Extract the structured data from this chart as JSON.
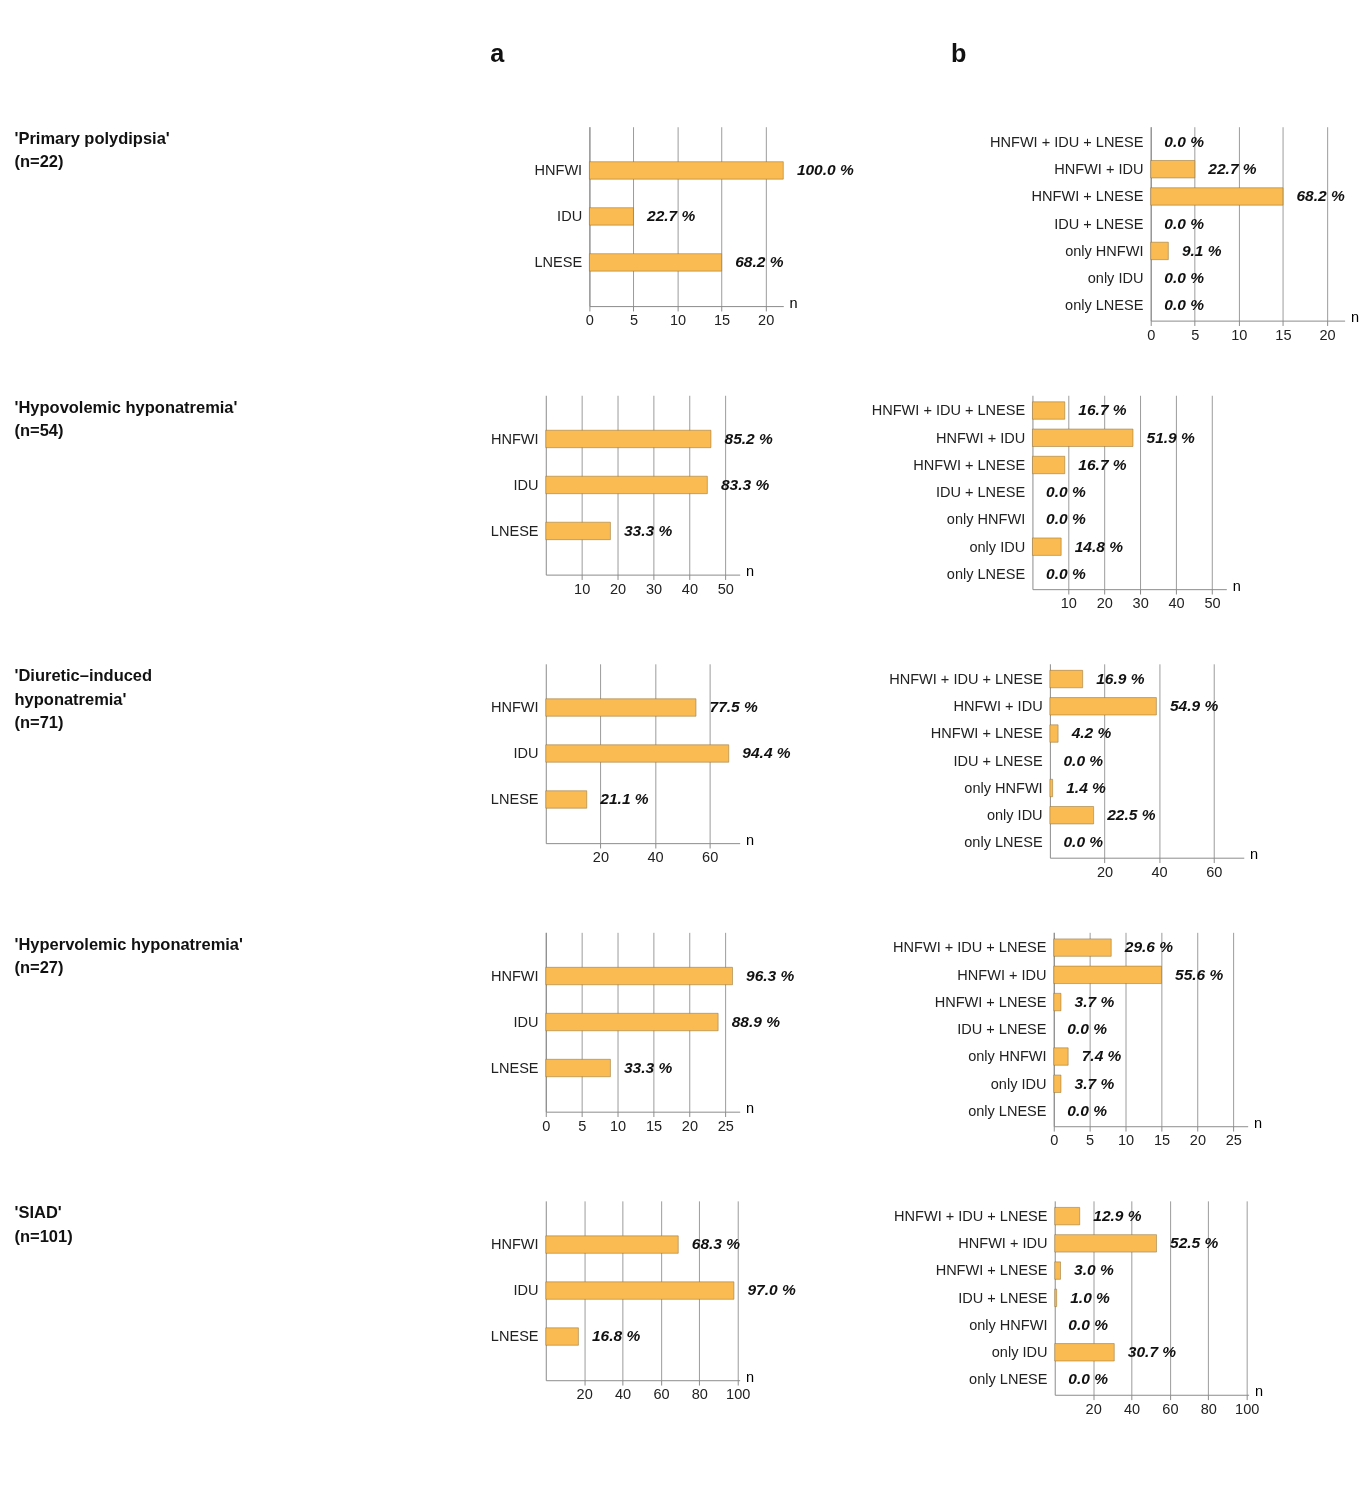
{
  "chart_data": [
    {
      "type": "other",
      "title": "'Primary polydipsia'\n(n=22)"
    },
    {
      "type": "bar",
      "orientation": "horizontal",
      "categories": [
        "HNFWI",
        "IDU",
        "LNESE"
      ],
      "values": [
        22,
        5,
        15
      ],
      "color": "#f9bb52",
      "xlim": [
        0,
        22
      ],
      "xticks": [
        0,
        5,
        10,
        15,
        20
      ],
      "xlabel": "n",
      "grid": "x",
      "annotations": [
        "a",
        {
          "text": "100.0 %",
          "x": 22,
          "y": "HNFWI"
        },
        {
          "text": "22.7 %",
          "x": 5,
          "y": "IDU"
        },
        {
          "text": "68.2 %",
          "x": 15,
          "y": "LNESE"
        }
      ]
    },
    {
      "type": "bar",
      "orientation": "horizontal",
      "categories": [
        "HNFWI + IDU + LNESE",
        "HNFWI + IDU",
        "HNFWI + LNESE",
        "IDU + LNESE",
        "only HNFWI",
        "only IDU",
        "only LNESE"
      ],
      "values": [
        0,
        5,
        15,
        0,
        2,
        0,
        0
      ],
      "color": "#f9bb52",
      "xlim": [
        0,
        22
      ],
      "xticks": [
        0,
        5,
        10,
        15,
        20
      ],
      "xlabel": "n",
      "grid": "x",
      "annotations": [
        "b",
        {
          "text": "0.0 %",
          "x": 0,
          "y": "HNFWI + IDU + LNESE"
        },
        {
          "text": "22.7 %",
          "x": 5,
          "y": "HNFWI + IDU"
        },
        {
          "text": "68.2 %",
          "x": 15,
          "y": "HNFWI + LNESE"
        },
        {
          "text": "0.0 %",
          "x": 0,
          "y": "IDU + LNESE"
        },
        {
          "text": "9.1 %",
          "x": 2,
          "y": "only HNFWI"
        },
        {
          "text": "0.0 %",
          "x": 0,
          "y": "only IDU"
        },
        {
          "text": "0.0 %",
          "x": 0,
          "y": "only LNESE"
        }
      ]
    },
    {
      "type": "other",
      "title": "'Hypovolemic hyponatremia'\n(n=54)"
    },
    {
      "type": "bar",
      "orientation": "horizontal",
      "categories": [
        "HNFWI",
        "IDU",
        "LNESE"
      ],
      "values": [
        46,
        45,
        18
      ],
      "color": "#f9bb52",
      "xlim": [
        0,
        54
      ],
      "xticks": [
        10,
        20,
        30,
        40,
        50
      ],
      "xlabel": "n",
      "grid": "x",
      "annotations": [
        {
          "text": "85.2 %",
          "x": 46,
          "y": "HNFWI"
        },
        {
          "text": "83.3 %",
          "x": 45,
          "y": "IDU"
        },
        {
          "text": "33.3 %",
          "x": 18,
          "y": "LNESE"
        }
      ]
    },
    {
      "type": "bar",
      "orientation": "horizontal",
      "categories": [
        "HNFWI + IDU + LNESE",
        "HNFWI + IDU",
        "HNFWI + LNESE",
        "IDU + LNESE",
        "only HNFWI",
        "only IDU",
        "only LNESE"
      ],
      "values": [
        9,
        28,
        9,
        0,
        0,
        8,
        0
      ],
      "color": "#f9bb52",
      "xlim": [
        0,
        54
      ],
      "xticks": [
        10,
        20,
        30,
        40,
        50
      ],
      "xlabel": "n",
      "grid": "x",
      "annotations": [
        {
          "text": "16.7 %",
          "x": 9,
          "y": "HNFWI + IDU + LNESE"
        },
        {
          "text": "51.9 %",
          "x": 28,
          "y": "HNFWI + IDU"
        },
        {
          "text": "16.7 %",
          "x": 9,
          "y": "HNFWI + LNESE"
        },
        {
          "text": "0.0 %",
          "x": 0,
          "y": "IDU + LNESE"
        },
        {
          "text": "0.0 %",
          "x": 0,
          "y": "only HNFWI"
        },
        {
          "text": "14.8 %",
          "x": 8,
          "y": "only IDU"
        },
        {
          "text": "0.0 %",
          "x": 0,
          "y": "only LNESE"
        }
      ]
    },
    {
      "type": "other",
      "title": "'Diuretic–induced\nhyponatremia'\n(n=71)"
    },
    {
      "type": "bar",
      "orientation": "horizontal",
      "categories": [
        "HNFWI",
        "IDU",
        "LNESE"
      ],
      "values": [
        55,
        67,
        15
      ],
      "color": "#f9bb52",
      "xlim": [
        0,
        71
      ],
      "xticks": [
        20,
        40,
        60
      ],
      "xlabel": "n",
      "grid": "x",
      "annotations": [
        {
          "text": "77.5 %",
          "x": 55,
          "y": "HNFWI"
        },
        {
          "text": "94.4 %",
          "x": 67,
          "y": "IDU"
        },
        {
          "text": "21.1 %",
          "x": 15,
          "y": "LNESE"
        }
      ]
    },
    {
      "type": "bar",
      "orientation": "horizontal",
      "categories": [
        "HNFWI + IDU + LNESE",
        "HNFWI + IDU",
        "HNFWI + LNESE",
        "IDU + LNESE",
        "only HNFWI",
        "only IDU",
        "only LNESE"
      ],
      "values": [
        12,
        39,
        3,
        0,
        1,
        16,
        0
      ],
      "color": "#f9bb52",
      "xlim": [
        0,
        71
      ],
      "xticks": [
        20,
        40,
        60
      ],
      "xlabel": "n",
      "grid": "x",
      "annotations": [
        {
          "text": "16.9 %",
          "x": 12,
          "y": "HNFWI + IDU + LNESE"
        },
        {
          "text": "54.9 %",
          "x": 39,
          "y": "HNFWI + IDU"
        },
        {
          "text": "4.2 %",
          "x": 3,
          "y": "HNFWI + LNESE"
        },
        {
          "text": "0.0 %",
          "x": 0,
          "y": "IDU + LNESE"
        },
        {
          "text": "1.4 %",
          "x": 1,
          "y": "only HNFWI"
        },
        {
          "text": "22.5 %",
          "x": 16,
          "y": "only IDU"
        },
        {
          "text": "0.0 %",
          "x": 0,
          "y": "only LNESE"
        }
      ]
    },
    {
      "type": "other",
      "title": "'Hypervolemic hyponatremia'\n(n=27)"
    },
    {
      "type": "bar",
      "orientation": "horizontal",
      "categories": [
        "HNFWI",
        "IDU",
        "LNESE"
      ],
      "values": [
        26,
        24,
        9
      ],
      "color": "#f9bb52",
      "xlim": [
        0,
        27
      ],
      "xticks": [
        0,
        5,
        10,
        15,
        20,
        25
      ],
      "xlabel": "n",
      "grid": "x",
      "annotations": [
        {
          "text": "96.3 %",
          "x": 26,
          "y": "HNFWI"
        },
        {
          "text": "88.9 %",
          "x": 24,
          "y": "IDU"
        },
        {
          "text": "33.3 %",
          "x": 9,
          "y": "LNESE"
        }
      ]
    },
    {
      "type": "bar",
      "orientation": "horizontal",
      "categories": [
        "HNFWI + IDU + LNESE",
        "HNFWI + IDU",
        "HNFWI + LNESE",
        "IDU + LNESE",
        "only HNFWI",
        "only IDU",
        "only LNESE"
      ],
      "values": [
        8,
        15,
        1,
        0,
        2,
        1,
        0
      ],
      "color": "#f9bb52",
      "xlim": [
        0,
        27
      ],
      "xticks": [
        0,
        5,
        10,
        15,
        20,
        25
      ],
      "xlabel": "n",
      "grid": "x",
      "annotations": [
        {
          "text": "29.6 %",
          "x": 8,
          "y": "HNFWI + IDU + LNESE"
        },
        {
          "text": "55.6 %",
          "x": 15,
          "y": "HNFWI + IDU"
        },
        {
          "text": "3.7 %",
          "x": 1,
          "y": "HNFWI + LNESE"
        },
        {
          "text": "0.0 %",
          "x": 0,
          "y": "IDU + LNESE"
        },
        {
          "text": "7.4 %",
          "x": 2,
          "y": "only HNFWI"
        },
        {
          "text": "3.7 %",
          "x": 1,
          "y": "only IDU"
        },
        {
          "text": "0.0 %",
          "x": 0,
          "y": "only LNESE"
        }
      ]
    },
    {
      "type": "other",
      "title": "'SIAD'\n(n=101)"
    },
    {
      "type": "bar",
      "orientation": "horizontal",
      "categories": [
        "HNFWI",
        "IDU",
        "LNESE"
      ],
      "values": [
        69,
        98,
        17
      ],
      "color": "#f9bb52",
      "xlim": [
        0,
        101
      ],
      "xticks": [
        20,
        40,
        60,
        80,
        100
      ],
      "xlabel": "n",
      "grid": "x",
      "annotations": [
        {
          "text": "68.3 %",
          "x": 69,
          "y": "HNFWI"
        },
        {
          "text": "97.0 %",
          "x": 98,
          "y": "IDU"
        },
        {
          "text": "16.8 %",
          "x": 17,
          "y": "LNESE"
        }
      ]
    },
    {
      "type": "bar",
      "orientation": "horizontal",
      "categories": [
        "HNFWI + IDU + LNESE",
        "HNFWI + IDU",
        "HNFWI + LNESE",
        "IDU + LNESE",
        "only HNFWI",
        "only IDU",
        "only LNESE"
      ],
      "values": [
        13,
        53,
        3,
        1,
        0,
        31,
        0
      ],
      "color": "#f9bb52",
      "xlim": [
        0,
        101
      ],
      "xticks": [
        20,
        40,
        60,
        80,
        100
      ],
      "xlabel": "n",
      "grid": "x",
      "annotations": [
        {
          "text": "12.9 %",
          "x": 13,
          "y": "HNFWI + IDU + LNESE"
        },
        {
          "text": "52.5 %",
          "x": 53,
          "y": "HNFWI + IDU"
        },
        {
          "text": "3.0 %",
          "x": 3,
          "y": "HNFWI + LNESE"
        },
        {
          "text": "1.0 %",
          "x": 1,
          "y": "IDU + LNESE"
        },
        {
          "text": "0.0 %",
          "x": 0,
          "y": "only HNFWI"
        },
        {
          "text": "30.7 %",
          "x": 31,
          "y": "only IDU"
        },
        {
          "text": "0.0 %",
          "x": 0,
          "y": "only LNESE"
        }
      ]
    }
  ]
}
